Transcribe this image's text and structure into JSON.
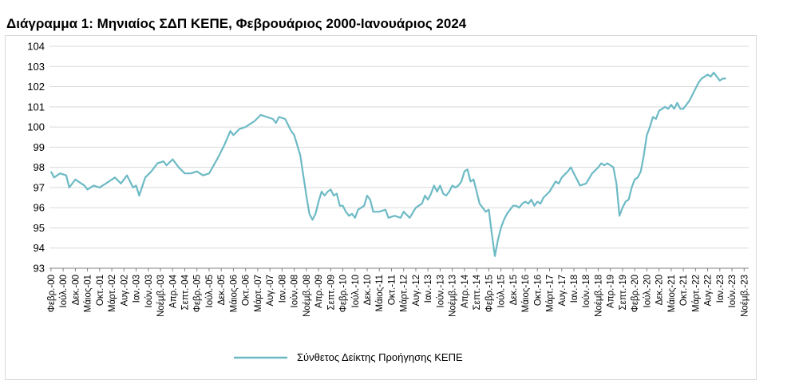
{
  "title": "Διάγραμμα 1: Μηνιαίος ΣΔΠ ΚΕΠΕ, Φεβρουάριος 2000-Ιανουάριος 2024",
  "chart_data": {
    "type": "line",
    "title": "Διάγραμμα 1: Μηνιαίος ΣΔΠ ΚΕΠΕ, Φεβρουάριος 2000-Ιανουάριος 2024",
    "xlabel": "",
    "ylabel": "",
    "ylim": [
      93,
      104
    ],
    "yticks": [
      93,
      94,
      95,
      96,
      97,
      98,
      99,
      100,
      101,
      102,
      103,
      104
    ],
    "grid": true,
    "legend_position": "bottom",
    "line_color": "#6dbac5",
    "x_tick_labels": [
      "Φεβρ.-00",
      "Ιούλ.-00",
      "Δεκ.-00",
      "Μάιος-01",
      "Οκτ.-01",
      "Μάρτ.-02",
      "Αυγ.-02",
      "Ιαν.-03",
      "Ιούν.-03",
      "Νοέμβ.-03",
      "Απρ.-04",
      "Σεπτ.-04",
      "Φεβρ.-05",
      "Ιούλ.-05",
      "Δεκ.-05",
      "Μάιος-06",
      "Οκτ.-06",
      "Μάρτ.-07",
      "Αυγ.-07",
      "Ιαν.-08",
      "Ιούν.-08",
      "Νοέμβ.-08",
      "Απρ.-09",
      "Σεπτ.-09",
      "Φεβρ.-10",
      "Ιούλ.-10",
      "Δεκ.-10",
      "Μάιος-11",
      "Οκτ.-11",
      "Μάρτ.-12",
      "Αυγ.-12",
      "Ιαν.-13",
      "Ιούν.-13",
      "Νοέμβ.-13",
      "Απρ.-14",
      "Σεπτ.-14",
      "Φεβρ.-15",
      "Ιούλ.-15",
      "Δεκ.-15",
      "Μάιος-16",
      "Οκτ.-16",
      "Μάρτ.-17",
      "Αυγ.-17",
      "Ιαν.-18",
      "Ιούν.-18",
      "Νοέμβ.-18",
      "Απρ.-19",
      "Σεπτ.-19",
      "Φεβρ.-20",
      "Ιούλ.-20",
      "Δεκ.-20",
      "Μάιος-21",
      "Οκτ.-21",
      "Μάρτ.-22",
      "Αυγ.-22",
      "Ιαν.-23",
      "Ιούν.-23",
      "Νοέμβ.-23"
    ],
    "series": [
      {
        "name": "Σύνθετος Δείκτης Προήγησης ΚΕΠΕ",
        "keyframes": [
          [
            0,
            97.8
          ],
          [
            1,
            97.5
          ],
          [
            3,
            97.7
          ],
          [
            5,
            97.6
          ],
          [
            6,
            97.0
          ],
          [
            8,
            97.4
          ],
          [
            10,
            97.2
          ],
          [
            11,
            97.1
          ],
          [
            12,
            96.9
          ],
          [
            14,
            97.1
          ],
          [
            16,
            97.0
          ],
          [
            18,
            97.2
          ],
          [
            21,
            97.5
          ],
          [
            23,
            97.2
          ],
          [
            25,
            97.6
          ],
          [
            27,
            97.0
          ],
          [
            28,
            97.1
          ],
          [
            29,
            96.6
          ],
          [
            31,
            97.5
          ],
          [
            33,
            97.8
          ],
          [
            35,
            98.2
          ],
          [
            37,
            98.3
          ],
          [
            38,
            98.1
          ],
          [
            40,
            98.4
          ],
          [
            42,
            98.0
          ],
          [
            44,
            97.7
          ],
          [
            46,
            97.7
          ],
          [
            48,
            97.8
          ],
          [
            50,
            97.6
          ],
          [
            52,
            97.7
          ],
          [
            55,
            98.5
          ],
          [
            57,
            99.1
          ],
          [
            59,
            99.8
          ],
          [
            60,
            99.6
          ],
          [
            62,
            99.9
          ],
          [
            64,
            100.0
          ],
          [
            67,
            100.3
          ],
          [
            69,
            100.6
          ],
          [
            71,
            100.5
          ],
          [
            73,
            100.4
          ],
          [
            74,
            100.2
          ],
          [
            75,
            100.5
          ],
          [
            77,
            100.4
          ],
          [
            79,
            99.8
          ],
          [
            80,
            99.6
          ],
          [
            82,
            98.6
          ],
          [
            83,
            97.6
          ],
          [
            84,
            96.6
          ],
          [
            85,
            95.7
          ],
          [
            86,
            95.4
          ],
          [
            87,
            95.7
          ],
          [
            88,
            96.3
          ],
          [
            89,
            96.8
          ],
          [
            90,
            96.6
          ],
          [
            91,
            96.8
          ],
          [
            92,
            96.9
          ],
          [
            93,
            96.6
          ],
          [
            94,
            96.7
          ],
          [
            95,
            96.1
          ],
          [
            96,
            96.1
          ],
          [
            97,
            95.8
          ],
          [
            98,
            95.6
          ],
          [
            99,
            95.7
          ],
          [
            100,
            95.5
          ],
          [
            101,
            95.9
          ],
          [
            103,
            96.1
          ],
          [
            104,
            96.6
          ],
          [
            105,
            96.4
          ],
          [
            106,
            95.8
          ],
          [
            108,
            95.8
          ],
          [
            110,
            95.9
          ],
          [
            111,
            95.5
          ],
          [
            113,
            95.6
          ],
          [
            115,
            95.5
          ],
          [
            116,
            95.8
          ],
          [
            118,
            95.5
          ],
          [
            120,
            96.0
          ],
          [
            122,
            96.2
          ],
          [
            123,
            96.6
          ],
          [
            124,
            96.4
          ],
          [
            125,
            96.7
          ],
          [
            126,
            97.1
          ],
          [
            127,
            96.8
          ],
          [
            128,
            97.1
          ],
          [
            129,
            96.7
          ],
          [
            130,
            96.6
          ],
          [
            131,
            96.8
          ],
          [
            132,
            97.1
          ],
          [
            133,
            97.0
          ],
          [
            134,
            97.1
          ],
          [
            135,
            97.3
          ],
          [
            136,
            97.8
          ],
          [
            137,
            97.9
          ],
          [
            138,
            97.3
          ],
          [
            139,
            97.4
          ],
          [
            140,
            96.8
          ],
          [
            141,
            96.2
          ],
          [
            142,
            96.0
          ],
          [
            143,
            95.8
          ],
          [
            144,
            95.9
          ],
          [
            145,
            94.7
          ],
          [
            146,
            93.6
          ],
          [
            147,
            94.4
          ],
          [
            148,
            95.0
          ],
          [
            149,
            95.4
          ],
          [
            150,
            95.7
          ],
          [
            151,
            95.9
          ],
          [
            152,
            96.1
          ],
          [
            153,
            96.1
          ],
          [
            154,
            96.0
          ],
          [
            155,
            96.2
          ],
          [
            156,
            96.3
          ],
          [
            157,
            96.2
          ],
          [
            158,
            96.4
          ],
          [
            159,
            96.1
          ],
          [
            160,
            96.3
          ],
          [
            161,
            96.2
          ],
          [
            162,
            96.5
          ],
          [
            164,
            96.8
          ],
          [
            166,
            97.3
          ],
          [
            167,
            97.2
          ],
          [
            168,
            97.5
          ],
          [
            170,
            97.8
          ],
          [
            171,
            98.0
          ],
          [
            172,
            97.7
          ],
          [
            173,
            97.4
          ],
          [
            174,
            97.1
          ],
          [
            176,
            97.2
          ],
          [
            178,
            97.7
          ],
          [
            180,
            98.0
          ],
          [
            181,
            98.2
          ],
          [
            182,
            98.1
          ],
          [
            183,
            98.2
          ],
          [
            185,
            98.0
          ],
          [
            186,
            97.2
          ],
          [
            187,
            95.6
          ],
          [
            188,
            96.0
          ],
          [
            189,
            96.3
          ],
          [
            190,
            96.4
          ],
          [
            191,
            97.0
          ],
          [
            192,
            97.4
          ],
          [
            193,
            97.5
          ],
          [
            194,
            97.8
          ],
          [
            195,
            98.6
          ],
          [
            196,
            99.6
          ],
          [
            197,
            100.0
          ],
          [
            198,
            100.5
          ],
          [
            199,
            100.4
          ],
          [
            200,
            100.8
          ],
          [
            201,
            100.9
          ],
          [
            202,
            101.0
          ],
          [
            203,
            100.9
          ],
          [
            204,
            101.1
          ],
          [
            205,
            100.9
          ],
          [
            206,
            101.2
          ],
          [
            207,
            100.9
          ],
          [
            208,
            100.9
          ],
          [
            209,
            101.1
          ],
          [
            210,
            101.3
          ],
          [
            211,
            101.6
          ],
          [
            212,
            101.9
          ],
          [
            213,
            102.2
          ],
          [
            214,
            102.4
          ],
          [
            215,
            102.5
          ],
          [
            216,
            102.6
          ],
          [
            217,
            102.5
          ],
          [
            218,
            102.7
          ],
          [
            219,
            102.5
          ],
          [
            220,
            102.3
          ],
          [
            221,
            102.4
          ],
          [
            222,
            102.4
          ]
        ]
      }
    ]
  }
}
